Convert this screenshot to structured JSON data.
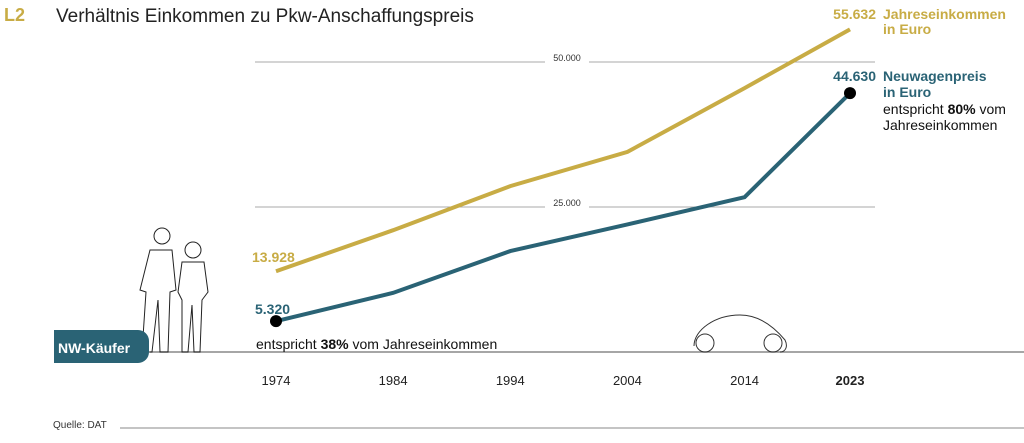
{
  "header": {
    "code": "L2",
    "title": "Verhältnis Einkommen zu Pkw-Anschaffungspreis"
  },
  "footer": {
    "source": "Quelle: DAT"
  },
  "badge": {
    "label": "NW-Käufer"
  },
  "colors": {
    "income": "#c8ac45",
    "price": "#2a6375",
    "accent": "#2a6375",
    "grid": "#aaaaaa"
  },
  "chart_data": {
    "type": "line",
    "title": "Verhältnis Einkommen zu Pkw-Anschaffungspreis",
    "x": [
      1974,
      1984,
      1994,
      2004,
      2014,
      2023
    ],
    "x_tick_labels": [
      "1974",
      "1984",
      "1994",
      "2004",
      "2014",
      "2023"
    ],
    "y_ticks": [
      25000,
      50000
    ],
    "y_tick_labels": [
      "25.000",
      "50.000"
    ],
    "ylim": [
      0,
      60000
    ],
    "series": [
      {
        "name": "Jahreseinkommen in Euro",
        "name_line1": "Jahreseinkommen",
        "name_line2": "in Euro",
        "values": [
          13928,
          21000,
          28600,
          34500,
          45500,
          55632
        ],
        "start_label": "13.928",
        "end_label": "55.632"
      },
      {
        "name": "Neuwagenpreis in Euro",
        "name_line1": "Neuwagenpreis",
        "name_line2": "in Euro",
        "values": [
          5320,
          10200,
          17400,
          22000,
          26700,
          44630
        ],
        "start_label": "5.320",
        "end_label": "44.630"
      }
    ],
    "annotations": {
      "start": {
        "pre": "entspricht ",
        "pct": "38%",
        "post": " vom Jahreseinkommen"
      },
      "end": {
        "pre": "entspricht ",
        "pct": "80%",
        "post": " vom",
        "line2": "Jahreseinkommen"
      }
    }
  }
}
